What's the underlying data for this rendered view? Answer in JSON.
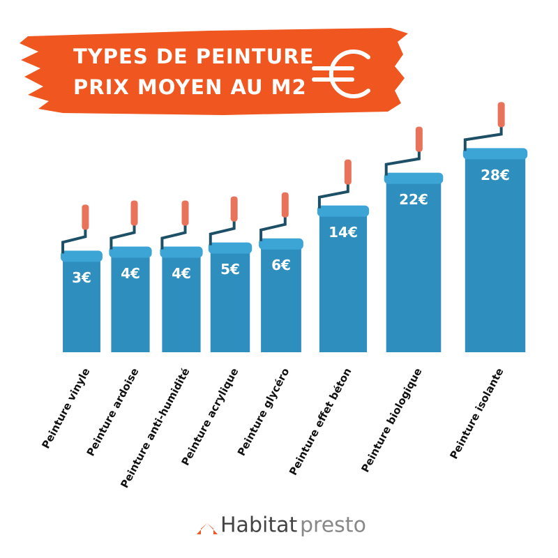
{
  "chart_data": {
    "type": "bar",
    "title": "TYPES DE PEINTURE",
    "subtitle": "PRIX MOYEN AU M2",
    "categories": [
      "Peinture vinyle",
      "Peinture ardoise",
      "Peinture anti-humidité",
      "Peinture acrylique",
      "Peinture glycéro",
      "Peinture effet béton",
      "Peinture biologique",
      "Peinture isolante"
    ],
    "values": [
      3,
      4,
      4,
      5,
      6,
      14,
      22,
      28
    ],
    "value_labels": [
      "3€",
      "4€",
      "4€",
      "5€",
      "6€",
      "14€",
      "22€",
      "28€"
    ],
    "color": "#2e8fbf"
  },
  "logo": {
    "brand": "Habitat",
    "suffix": "presto"
  }
}
